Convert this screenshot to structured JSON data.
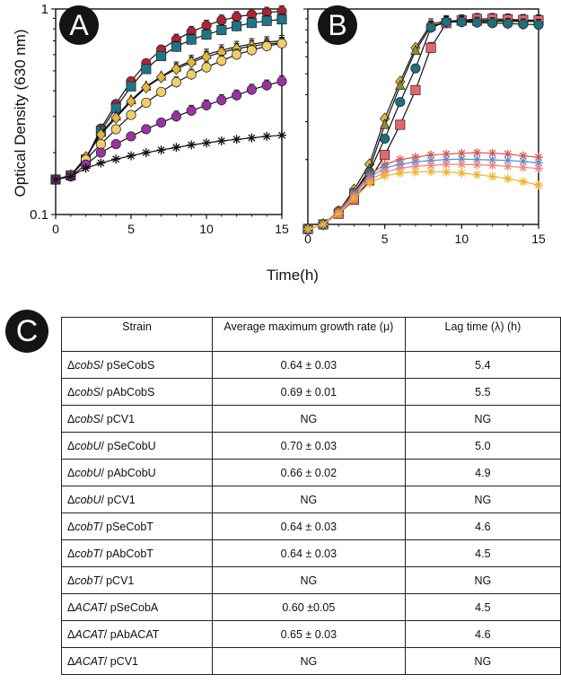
{
  "chart_data": [
    {
      "panel": "A",
      "type": "line",
      "yscale": "log",
      "xlabel": "Time(h)",
      "ylabel": "Optical Density (630 nm)",
      "xlim": [
        0,
        15
      ],
      "ylim": [
        0.1,
        1
      ],
      "xticks": [
        "0",
        "5",
        "10",
        "15"
      ],
      "yticks": [
        "0.1",
        "1"
      ],
      "x": [
        0,
        1,
        2,
        3,
        4,
        5,
        6,
        7,
        8,
        9,
        10,
        11,
        12,
        13,
        14,
        15
      ],
      "series": [
        {
          "name": "red circles",
          "color": "#b22232",
          "marker": "circle",
          "values": [
            0.148,
            0.155,
            0.185,
            0.262,
            0.345,
            0.445,
            0.545,
            0.635,
            0.71,
            0.775,
            0.83,
            0.88,
            0.915,
            0.94,
            0.96,
            0.975
          ]
        },
        {
          "name": "teal squares",
          "color": "#1f7585",
          "marker": "square",
          "values": [
            0.148,
            0.155,
            0.185,
            0.255,
            0.33,
            0.42,
            0.51,
            0.59,
            0.655,
            0.71,
            0.75,
            0.79,
            0.825,
            0.855,
            0.875,
            0.89
          ]
        },
        {
          "name": "pink triangles",
          "color": "#e47d86",
          "marker": "triangle",
          "values": [
            0.148,
            0.155,
            0.19,
            0.25,
            0.3,
            0.36,
            0.42,
            0.47,
            0.52,
            0.56,
            0.6,
            0.63,
            0.655,
            0.675,
            0.69,
            0.7
          ]
        },
        {
          "name": "yellow diamonds",
          "color": "#e4b638",
          "marker": "diamond",
          "values": [
            0.148,
            0.155,
            0.19,
            0.245,
            0.295,
            0.355,
            0.415,
            0.465,
            0.51,
            0.55,
            0.585,
            0.615,
            0.64,
            0.66,
            0.675,
            0.685
          ]
        },
        {
          "name": "light yellow circles",
          "color": "#f0cf6a",
          "marker": "circle",
          "values": [
            0.148,
            0.155,
            0.185,
            0.22,
            0.26,
            0.305,
            0.35,
            0.395,
            0.44,
            0.48,
            0.52,
            0.56,
            0.6,
            0.63,
            0.66,
            0.68
          ]
        },
        {
          "name": "purple circles",
          "color": "#9a32a4",
          "marker": "circle",
          "values": [
            0.148,
            0.153,
            0.175,
            0.2,
            0.22,
            0.24,
            0.26,
            0.28,
            0.3,
            0.32,
            0.34,
            0.36,
            0.38,
            0.405,
            0.425,
            0.445
          ]
        },
        {
          "name": "black stars",
          "color": "#1b1b1b",
          "marker": "star",
          "values": [
            0.148,
            0.153,
            0.168,
            0.178,
            0.186,
            0.193,
            0.2,
            0.206,
            0.212,
            0.218,
            0.223,
            0.228,
            0.232,
            0.236,
            0.24,
            0.243
          ]
        }
      ]
    },
    {
      "panel": "B",
      "type": "line",
      "yscale": "log",
      "xlabel": "Time(h)",
      "ylabel": "",
      "xlim": [
        0,
        15
      ],
      "ylim": [
        0.1,
        1
      ],
      "xticks": [
        "0",
        "5",
        "10",
        "15"
      ],
      "x": [
        0,
        1,
        2,
        3,
        4,
        5,
        6,
        7,
        8,
        9,
        10,
        11,
        12,
        13,
        14,
        15
      ],
      "series": [
        {
          "name": "yellow diamonds",
          "color": "#e4b638",
          "marker": "diamond",
          "values": [
            0.095,
            0.1,
            0.115,
            0.145,
            0.19,
            0.31,
            0.46,
            0.66,
            0.85,
            0.88,
            0.885,
            0.885,
            0.885,
            0.885,
            0.885,
            0.885
          ]
        },
        {
          "name": "olive triangles",
          "color": "#8f8a3a",
          "marker": "triangle",
          "values": [
            0.095,
            0.1,
            0.115,
            0.14,
            0.18,
            0.29,
            0.44,
            0.64,
            0.83,
            0.87,
            0.875,
            0.875,
            0.875,
            0.875,
            0.875,
            0.875
          ]
        },
        {
          "name": "pink squares",
          "color": "#e4666c",
          "marker": "square",
          "values": [
            0.095,
            0.1,
            0.112,
            0.13,
            0.16,
            0.21,
            0.29,
            0.42,
            0.66,
            0.86,
            0.885,
            0.9,
            0.9,
            0.895,
            0.89,
            0.885
          ]
        },
        {
          "name": "teal circles",
          "color": "#1f6f7c",
          "marker": "circle",
          "values": [
            0.095,
            0.1,
            0.115,
            0.14,
            0.175,
            0.25,
            0.37,
            0.53,
            0.82,
            0.87,
            0.87,
            0.865,
            0.86,
            0.855,
            0.85,
            0.845
          ]
        },
        {
          "name": "red stars (control)",
          "color": "#d9534f",
          "marker": "star",
          "values": [
            0.095,
            0.1,
            0.115,
            0.14,
            0.17,
            0.19,
            0.2,
            0.205,
            0.21,
            0.212,
            0.214,
            0.215,
            0.214,
            0.212,
            0.208,
            0.205
          ]
        },
        {
          "name": "blue stars (control)",
          "color": "#5a8fc8",
          "marker": "star",
          "values": [
            0.095,
            0.1,
            0.113,
            0.138,
            0.165,
            0.183,
            0.19,
            0.195,
            0.198,
            0.2,
            0.201,
            0.2,
            0.199,
            0.198,
            0.196,
            0.193
          ]
        },
        {
          "name": "salmon stars (control)",
          "color": "#f08080",
          "marker": "star",
          "values": [
            0.095,
            0.1,
            0.113,
            0.135,
            0.16,
            0.175,
            0.182,
            0.186,
            0.188,
            0.19,
            0.19,
            0.189,
            0.188,
            0.186,
            0.184,
            0.182
          ]
        },
        {
          "name": "yellow stars (control)",
          "color": "#f0b429",
          "marker": "star",
          "values": [
            0.095,
            0.1,
            0.112,
            0.132,
            0.155,
            0.168,
            0.173,
            0.175,
            0.176,
            0.175,
            0.173,
            0.17,
            0.167,
            0.163,
            0.158,
            0.152
          ]
        }
      ]
    }
  ],
  "panels": {
    "a": "A",
    "b": "B",
    "c": "C"
  },
  "table": {
    "headers": {
      "strain": "Strain",
      "rate": "Average maximum growth rate (μ)",
      "lag": "Lag time (λ) (h)"
    },
    "rows": [
      {
        "delta": "Δ",
        "gene": "cobS",
        "plasmid": "/ pSeCobS",
        "rate": "0.64 ± 0.03",
        "lag": "5.4"
      },
      {
        "delta": "Δ",
        "gene": "cobS",
        "plasmid": "/ pAbCobS",
        "rate": "0.69 ± 0.01",
        "lag": "5.5"
      },
      {
        "delta": "Δ",
        "gene": "cobS",
        "plasmid": "/ pCV1",
        "rate": "NG",
        "lag": "NG"
      },
      {
        "delta": "Δ",
        "gene": "cobU",
        "plasmid": "/ pSeCobU",
        "rate": "0.70 ± 0.03",
        "lag": "5.0"
      },
      {
        "delta": "Δ",
        "gene": "cobU",
        "plasmid": "/ pAbCobU",
        "rate": "0.66 ± 0.02",
        "lag": "4.9"
      },
      {
        "delta": "Δ",
        "gene": "cobU",
        "plasmid": "/ pCV1",
        "rate": "NG",
        "lag": "NG"
      },
      {
        "delta": "Δ",
        "gene": "cobT",
        "plasmid": "/ pSeCobT",
        "rate": "0.64 ± 0.03",
        "lag": "4.6"
      },
      {
        "delta": "Δ",
        "gene": "cobT",
        "plasmid": "/ pAbCobT",
        "rate": "0.64 ± 0.03",
        "lag": "4.5"
      },
      {
        "delta": "Δ",
        "gene": "cobT",
        "plasmid": "/ pCV1",
        "rate": "NG",
        "lag": "NG"
      },
      {
        "delta": "Δ",
        "gene": "ACAT",
        "plasmid": "/ pSeCobA",
        "rate": "0.60 ±0.05",
        "lag": "4.5"
      },
      {
        "delta": "Δ",
        "gene": "ACAT",
        "plasmid": "/ pAbACAT",
        "rate": "0.65 ± 0.03",
        "lag": "4.6"
      },
      {
        "delta": "Δ",
        "gene": "ACAT",
        "plasmid": "/ pCV1",
        "rate": "NG",
        "lag": "NG"
      }
    ]
  }
}
